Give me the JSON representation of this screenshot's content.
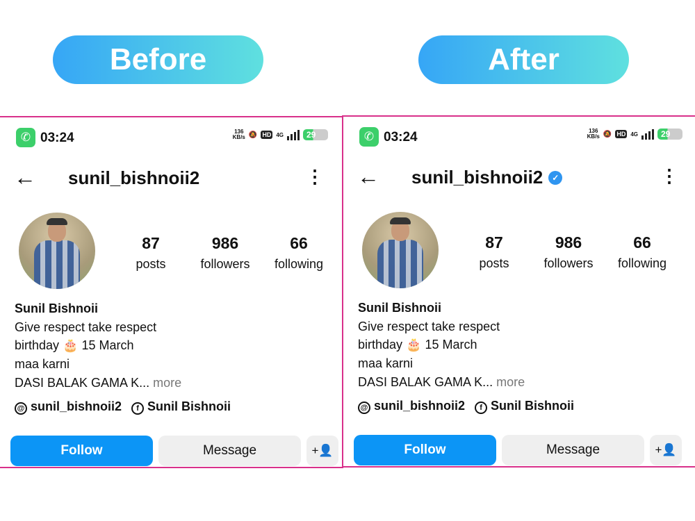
{
  "labels": {
    "before": "Before",
    "after": "After"
  },
  "colors": {
    "accent": "#0c95f6",
    "frame": "#d8308a",
    "verified": "#2f95f0"
  },
  "panels": [
    {
      "status": {
        "time": "03:24",
        "speed": "136",
        "speed_unit": "KB/s",
        "hd": "HD",
        "network": "4G",
        "battery": "29"
      },
      "username": "sunil_bishnoii2",
      "verified": false,
      "stats": [
        {
          "n": "87",
          "l": "posts"
        },
        {
          "n": "986",
          "l": "followers"
        },
        {
          "n": "66",
          "l": "following"
        }
      ],
      "bio": {
        "name": "Sunil Bishnoii",
        "line1": "Give respect take respect",
        "line2": "birthday 🎂 15 March",
        "line3": "maa karni",
        "line4": "DASI BALAK GAMA K...",
        "more": "more"
      },
      "links": {
        "threads": "sunil_bishnoii2",
        "facebook": "Sunil Bishnoii"
      },
      "buttons": {
        "follow": "Follow",
        "message": "Message"
      }
    },
    {
      "status": {
        "time": "03:24",
        "speed": "136",
        "speed_unit": "KB/s",
        "hd": "HD",
        "network": "4G",
        "battery": "29"
      },
      "username": "sunil_bishnoii2",
      "verified": true,
      "stats": [
        {
          "n": "87",
          "l": "posts"
        },
        {
          "n": "986",
          "l": "followers"
        },
        {
          "n": "66",
          "l": "following"
        }
      ],
      "bio": {
        "name": "Sunil Bishnoii",
        "line1": "Give respect take respect",
        "line2": "birthday 🎂 15 March",
        "line3": "maa karni",
        "line4": "DASI BALAK GAMA K...",
        "more": "more"
      },
      "links": {
        "threads": "sunil_bishnoii2",
        "facebook": "Sunil Bishnoii"
      },
      "buttons": {
        "follow": "Follow",
        "message": "Message"
      }
    }
  ]
}
